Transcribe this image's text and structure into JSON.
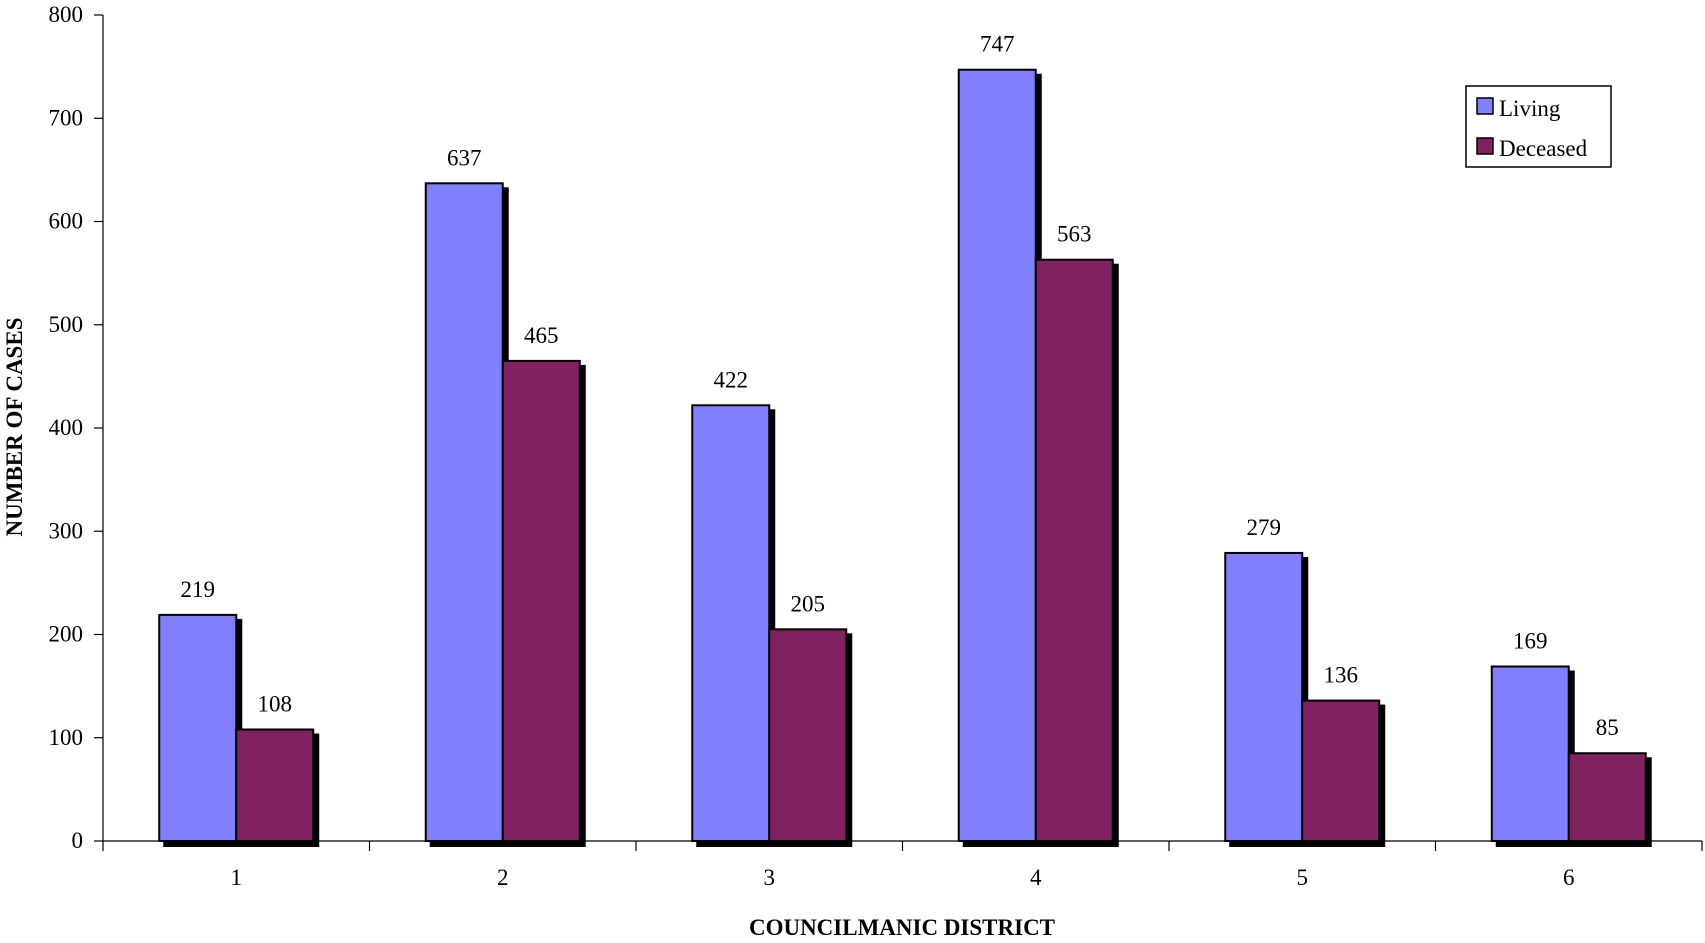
{
  "chart_data": {
    "type": "bar",
    "categories": [
      "1",
      "2",
      "3",
      "4",
      "5",
      "6"
    ],
    "series": [
      {
        "name": "Living",
        "values": [
          219,
          637,
          422,
          747,
          279,
          169
        ],
        "color": "#8080ff"
      },
      {
        "name": "Deceased",
        "values": [
          108,
          465,
          205,
          563,
          136,
          85
        ],
        "color": "#802060"
      }
    ],
    "xlabel": "COUNCILMANIC DISTRICT",
    "ylabel": "NUMBER OF CASES",
    "ylim": [
      0,
      800
    ],
    "yticks": [
      0,
      100,
      200,
      300,
      400,
      500,
      600,
      700,
      800
    ],
    "grid": false,
    "legend_position": "top-right",
    "data_labels": true
  }
}
